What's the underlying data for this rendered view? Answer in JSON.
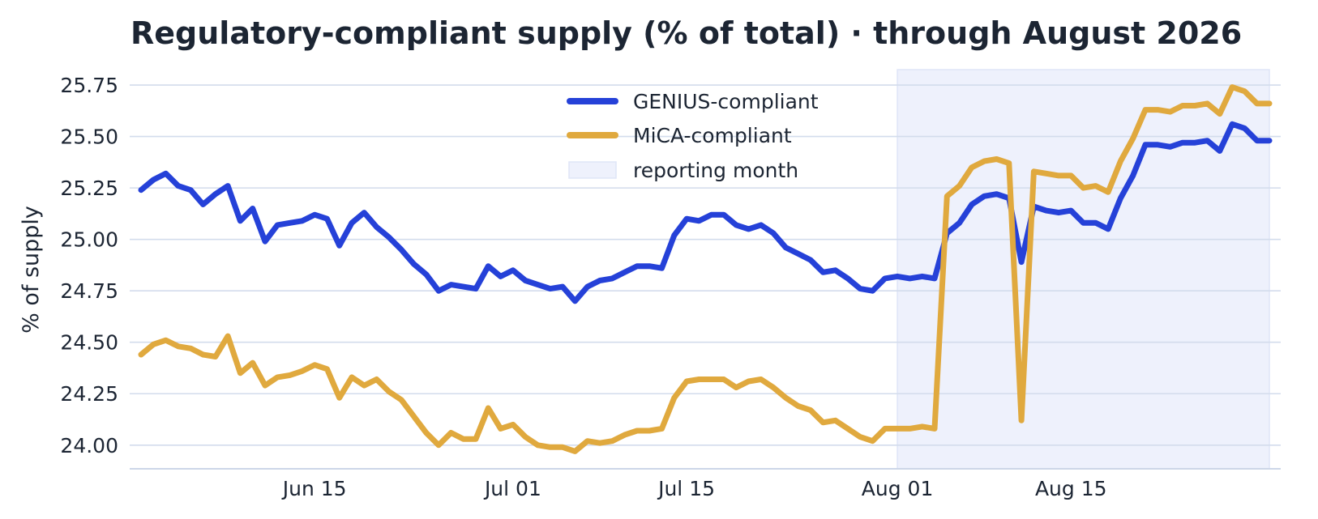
{
  "chart_data": {
    "type": "line",
    "title": "Regulatory-compliant supply (% of total) · through August 2026",
    "xlabel": "",
    "ylabel": "% of supply",
    "x": [
      "2026-06-01",
      "2026-06-02",
      "2026-06-03",
      "2026-06-04",
      "2026-06-05",
      "2026-06-06",
      "2026-06-07",
      "2026-06-08",
      "2026-06-09",
      "2026-06-10",
      "2026-06-11",
      "2026-06-12",
      "2026-06-13",
      "2026-06-14",
      "2026-06-15",
      "2026-06-16",
      "2026-06-17",
      "2026-06-18",
      "2026-06-19",
      "2026-06-20",
      "2026-06-21",
      "2026-06-22",
      "2026-06-23",
      "2026-06-24",
      "2026-06-25",
      "2026-06-26",
      "2026-06-27",
      "2026-06-28",
      "2026-06-29",
      "2026-06-30",
      "2026-07-01",
      "2026-07-02",
      "2026-07-03",
      "2026-07-04",
      "2026-07-05",
      "2026-07-06",
      "2026-07-07",
      "2026-07-08",
      "2026-07-09",
      "2026-07-10",
      "2026-07-11",
      "2026-07-12",
      "2026-07-13",
      "2026-07-14",
      "2026-07-15",
      "2026-07-16",
      "2026-07-17",
      "2026-07-18",
      "2026-07-19",
      "2026-07-20",
      "2026-07-21",
      "2026-07-22",
      "2026-07-23",
      "2026-07-24",
      "2026-07-25",
      "2026-07-26",
      "2026-07-27",
      "2026-07-28",
      "2026-07-29",
      "2026-07-30",
      "2026-07-31",
      "2026-08-01",
      "2026-08-02",
      "2026-08-03",
      "2026-08-04",
      "2026-08-05",
      "2026-08-06",
      "2026-08-07",
      "2026-08-08",
      "2026-08-09",
      "2026-08-10",
      "2026-08-11",
      "2026-08-12",
      "2026-08-13",
      "2026-08-14",
      "2026-08-15",
      "2026-08-16",
      "2026-08-17",
      "2026-08-18",
      "2026-08-19",
      "2026-08-20",
      "2026-08-21",
      "2026-08-22",
      "2026-08-23",
      "2026-08-24",
      "2026-08-25",
      "2026-08-26",
      "2026-08-27",
      "2026-08-28",
      "2026-08-29",
      "2026-08-30",
      "2026-08-31"
    ],
    "series": [
      {
        "name": "GENIUS-compliant",
        "color": "#2541d8",
        "values": [
          25.24,
          25.29,
          25.32,
          25.26,
          25.24,
          25.17,
          25.22,
          25.26,
          25.09,
          25.15,
          24.99,
          25.07,
          25.08,
          25.09,
          25.12,
          25.1,
          24.97,
          25.08,
          25.13,
          25.06,
          25.01,
          24.95,
          24.88,
          24.83,
          24.75,
          24.78,
          24.77,
          24.76,
          24.87,
          24.82,
          24.85,
          24.8,
          24.78,
          24.76,
          24.77,
          24.7,
          24.77,
          24.8,
          24.81,
          24.84,
          24.87,
          24.87,
          24.86,
          25.02,
          25.1,
          25.09,
          25.12,
          25.12,
          25.07,
          25.05,
          25.07,
          25.03,
          24.96,
          24.93,
          24.9,
          24.84,
          24.85,
          24.81,
          24.76,
          24.75,
          24.81,
          24.82,
          24.81,
          24.82,
          24.81,
          25.03,
          25.08,
          25.17,
          25.21,
          25.22,
          25.2,
          24.89,
          25.16,
          25.14,
          25.13,
          25.14,
          25.08,
          25.08,
          25.05,
          25.2,
          25.31,
          25.46,
          25.46,
          25.45,
          25.47,
          25.47,
          25.48,
          25.43,
          25.56,
          25.54,
          25.48,
          25.48
        ]
      },
      {
        "name": "MiCA-compliant",
        "color": "#e0a93e",
        "values": [
          24.44,
          24.49,
          24.51,
          24.48,
          24.47,
          24.44,
          24.43,
          24.53,
          24.35,
          24.4,
          24.29,
          24.33,
          24.34,
          24.36,
          24.39,
          24.37,
          24.23,
          24.33,
          24.29,
          24.32,
          24.26,
          24.22,
          24.14,
          24.06,
          24.0,
          24.06,
          24.03,
          24.03,
          24.18,
          24.08,
          24.1,
          24.04,
          24.0,
          23.99,
          23.99,
          23.97,
          24.02,
          24.01,
          24.02,
          24.05,
          24.07,
          24.07,
          24.08,
          24.23,
          24.31,
          24.32,
          24.32,
          24.32,
          24.28,
          24.31,
          24.32,
          24.28,
          24.23,
          24.19,
          24.17,
          24.11,
          24.12,
          24.08,
          24.04,
          24.02,
          24.08,
          24.08,
          24.08,
          24.09,
          24.08,
          25.21,
          25.26,
          25.35,
          25.38,
          25.39,
          25.37,
          24.12,
          25.33,
          25.32,
          25.31,
          25.31,
          25.25,
          25.26,
          25.23,
          25.38,
          25.49,
          25.63,
          25.63,
          25.62,
          25.65,
          25.65,
          25.66,
          25.61,
          25.74,
          25.72,
          25.66,
          25.66
        ]
      }
    ],
    "shaded_region": {
      "label": "reporting month",
      "start": "2026-08-01",
      "end": "2026-08-31",
      "color": "#eef1fc"
    },
    "ylim": [
      23.885,
      25.825
    ],
    "yticks": [
      24.0,
      24.25,
      24.5,
      24.75,
      25.0,
      25.25,
      25.5,
      25.75
    ],
    "ytick_labels": [
      "24.00",
      "24.25",
      "24.50",
      "24.75",
      "25.00",
      "25.25",
      "25.50",
      "25.75"
    ],
    "xticks": [
      "2026-06-15",
      "2026-07-01",
      "2026-07-15",
      "2026-08-01",
      "2026-08-15"
    ],
    "xtick_labels": [
      "Jun 15",
      "Jul 01",
      "Jul 15",
      "Aug 01",
      "Aug 15"
    ],
    "grid": "horizontal",
    "legend": {
      "placement": "top-center",
      "entries": [
        "GENIUS-compliant",
        "MiCA-compliant",
        "reporting month"
      ]
    }
  }
}
